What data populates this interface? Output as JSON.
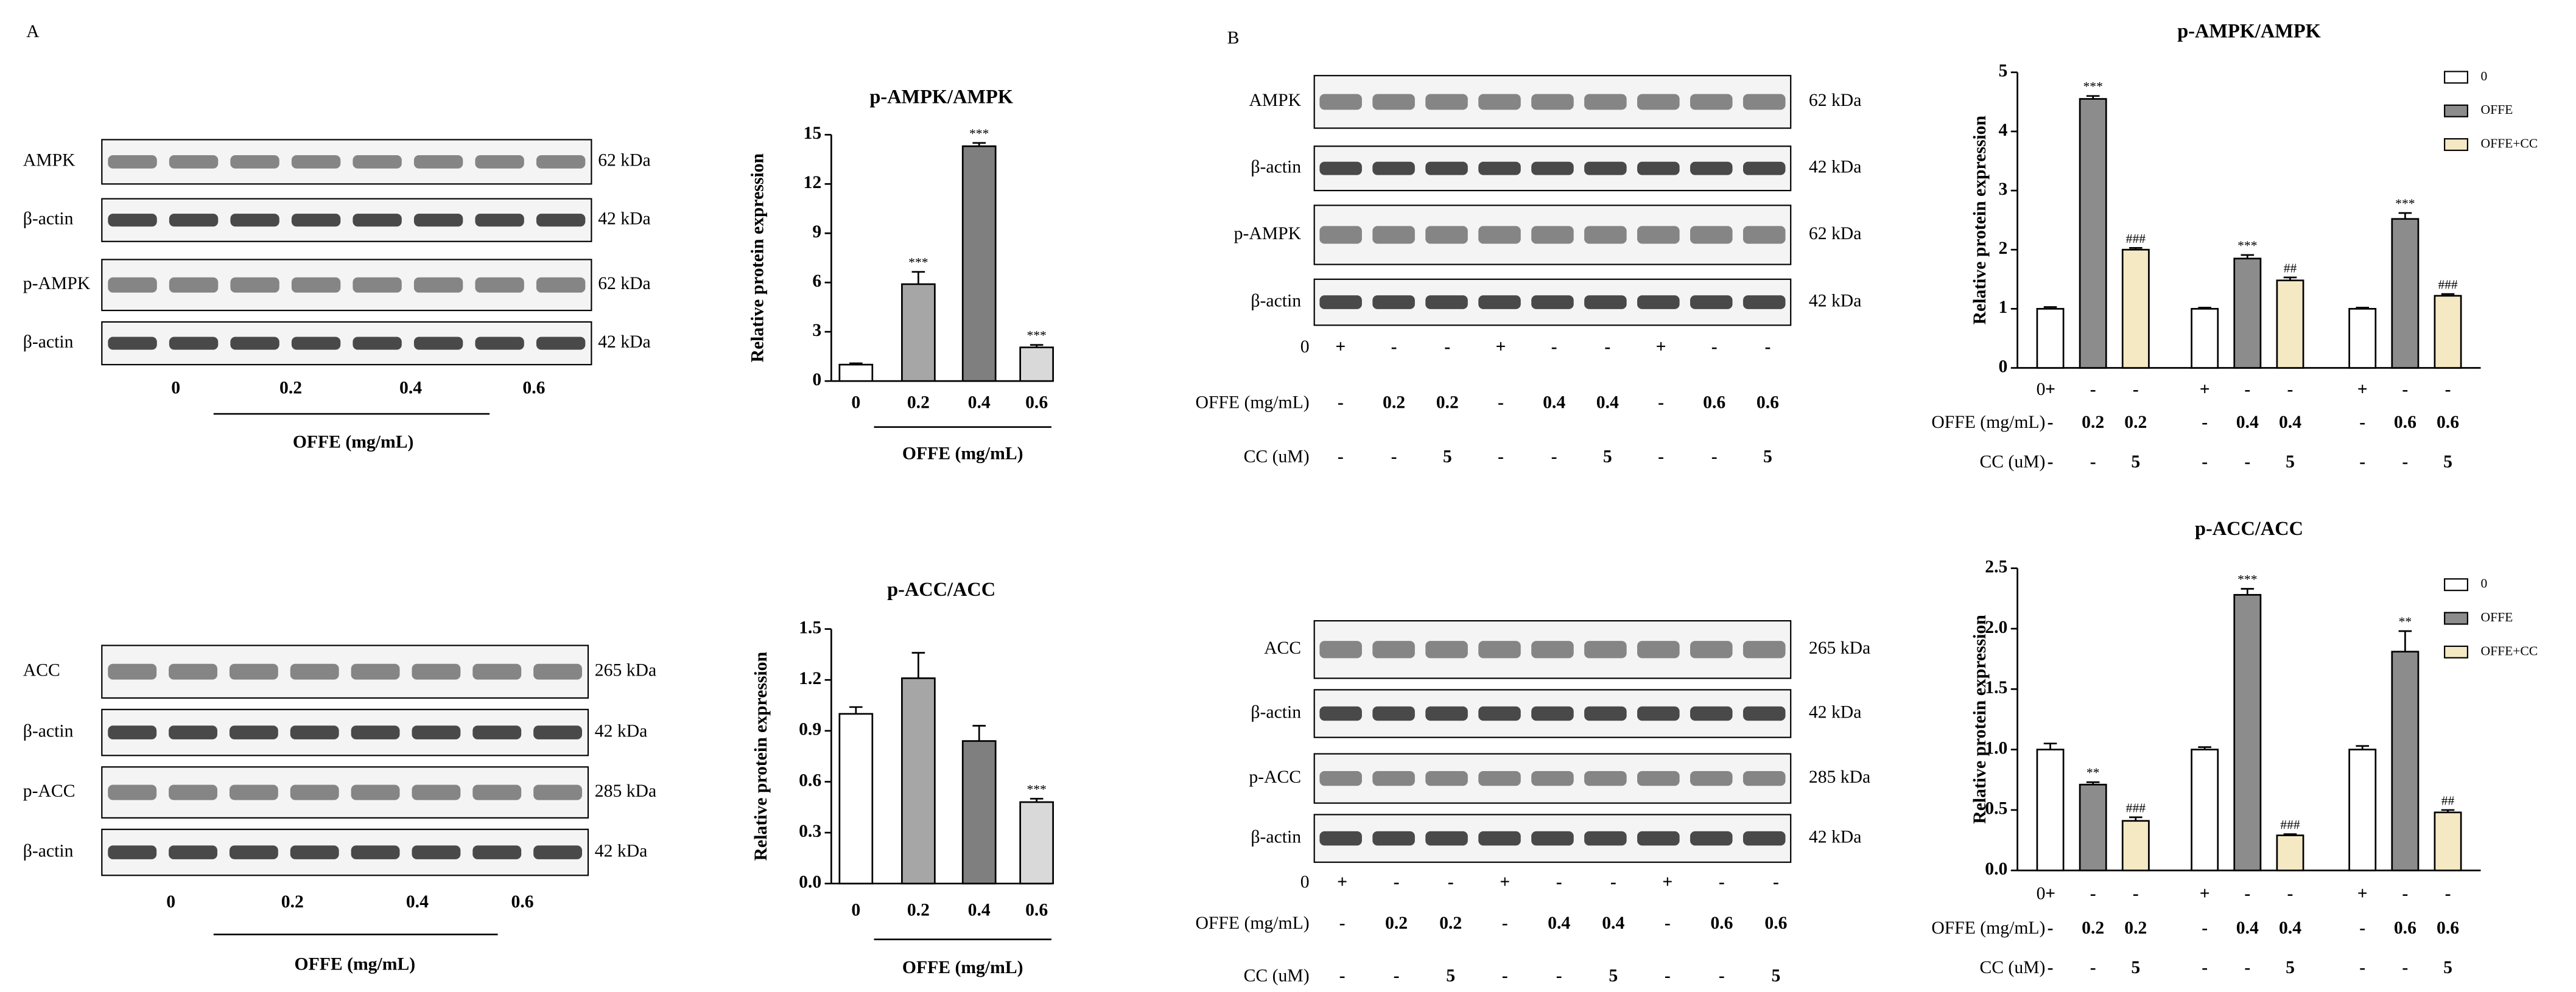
{
  "chart_data": [
    {
      "type": "bar",
      "title": "p-AMPK/AMPK",
      "y_label": "Relative protein expression",
      "x_label": "OFFE (mg/mL)",
      "categories": [
        "0",
        "0.2",
        "0.4",
        "0.6"
      ],
      "values": [
        1,
        5.9,
        14.3,
        2.05
      ],
      "errors": [
        0.08,
        0.75,
        0.2,
        0.15
      ],
      "annotations": [
        null,
        "***",
        "***",
        "***"
      ],
      "colors": [
        "#ffffff",
        "#a6a6a6",
        "#7f7f7f",
        "#d9d9d9"
      ],
      "ylim": [
        0,
        15
      ],
      "yticks": [
        0,
        3,
        6,
        9,
        12,
        15
      ]
    },
    {
      "type": "bar",
      "title": "p-ACC/ACC",
      "y_label": "Relative protein expression",
      "x_label": "OFFE (mg/mL)",
      "categories": [
        "0",
        "0.2",
        "0.4",
        "0.6"
      ],
      "values": [
        1.0,
        1.21,
        0.84,
        0.48
      ],
      "errors": [
        0.04,
        0.15,
        0.09,
        0.02
      ],
      "annotations": [
        null,
        null,
        null,
        "***"
      ],
      "colors": [
        "#ffffff",
        "#a6a6a6",
        "#7f7f7f",
        "#d9d9d9"
      ],
      "ylim": [
        0,
        1.5
      ],
      "yticks": [
        {
          "value": 0,
          "label": "0.0"
        },
        0.3,
        0.6,
        0.9,
        1.2,
        1.5
      ]
    },
    {
      "type": "grouped_bar",
      "title": "p-AMPK/AMPK",
      "y_label": "Relative protein expression",
      "series": [
        {
          "name": "0",
          "color": "#ffffff",
          "values": [
            1,
            1,
            1
          ],
          "errors": [
            0.03,
            0.02,
            0.02
          ],
          "annotations": [
            null,
            null,
            null
          ]
        },
        {
          "name": "OFFE",
          "color": "#8c8c8c",
          "values": [
            4.55,
            1.85,
            2.52
          ],
          "errors": [
            0.05,
            0.06,
            0.1
          ],
          "annotations": [
            "***",
            "***",
            "***"
          ]
        },
        {
          "name": "OFFE+CC",
          "color": "#f5e9c4",
          "values": [
            2.0,
            1.48,
            1.22
          ],
          "errors": [
            0.03,
            0.05,
            0.03
          ],
          "annotations": [
            "###",
            "##",
            "###"
          ]
        }
      ],
      "ylim": [
        0,
        5
      ],
      "yticks": [
        0,
        1,
        2,
        3,
        4,
        5
      ],
      "legend": "upper right",
      "conditions": [
        {
          "label": "0",
          "values": [
            "+",
            "-",
            "-",
            "+",
            "-",
            "-",
            "+",
            "-",
            "-"
          ]
        },
        {
          "label": "OFFE (mg/mL)",
          "values": [
            "-",
            "0.2",
            "0.2",
            "-",
            "0.4",
            "0.4",
            "-",
            "0.6",
            "0.6"
          ]
        },
        {
          "label": "CC (uM)",
          "values": [
            "-",
            "-",
            "5",
            "-",
            "-",
            "5",
            "-",
            "-",
            "5"
          ]
        }
      ]
    },
    {
      "type": "grouped_bar",
      "title": "p-ACC/ACC",
      "y_label": "Relative protein expression",
      "series": [
        {
          "name": "0",
          "color": "#ffffff",
          "values": [
            1,
            1,
            1
          ],
          "errors": [
            0.05,
            0.02,
            0.03
          ],
          "annotations": [
            null,
            null,
            null
          ]
        },
        {
          "name": "OFFE",
          "color": "#8c8c8c",
          "values": [
            0.71,
            2.28,
            1.81
          ],
          "errors": [
            0.02,
            0.05,
            0.17
          ],
          "annotations": [
            "**",
            "***",
            "**"
          ]
        },
        {
          "name": "OFFE+CC",
          "color": "#f5e9c4",
          "values": [
            0.41,
            0.29,
            0.48
          ],
          "errors": [
            0.03,
            0.01,
            0.02
          ],
          "annotations": [
            "###",
            "###",
            "##"
          ]
        }
      ],
      "ylim": [
        0,
        2.5
      ],
      "yticks": [
        {
          "value": 0,
          "label": "0.0"
        },
        0.5,
        {
          "value": 1,
          "label": "1.0"
        },
        1.5,
        {
          "value": 2,
          "label": "2.0"
        },
        2.5
      ],
      "legend": "upper right",
      "conditions": [
        {
          "label": "0",
          "values": [
            "+",
            "-",
            "-",
            "+",
            "-",
            "-",
            "+",
            "-",
            "-"
          ]
        },
        {
          "label": "OFFE (mg/mL)",
          "values": [
            "-",
            "0.2",
            "0.2",
            "-",
            "0.4",
            "0.4",
            "-",
            "0.6",
            "0.6"
          ]
        },
        {
          "label": "CC (uM)",
          "values": [
            "-",
            "-",
            "5",
            "-",
            "-",
            "5",
            "-",
            "-",
            "5"
          ]
        }
      ]
    }
  ],
  "blots": [
    {
      "panel": "A",
      "rows": [
        {
          "name": "AMPK",
          "kda": "62 kDa"
        },
        {
          "name": "β-actin",
          "kda": "42 kDa"
        },
        {
          "name": "p-AMPK",
          "kda": "62 kDa"
        },
        {
          "name": "β-actin",
          "kda": "42 kDa"
        }
      ],
      "lanes": [
        "0",
        "0.2",
        "0.4",
        "0.6"
      ],
      "x_label": "OFFE (mg/mL)"
    },
    {
      "rows": [
        {
          "name": "ACC",
          "kda": "265 kDa"
        },
        {
          "name": "β-actin",
          "kda": "42 kDa"
        },
        {
          "name": "p-ACC",
          "kda": "285 kDa"
        },
        {
          "name": "β-actin",
          "kda": "42 kDa"
        }
      ],
      "lanes": [
        "0",
        "0.2",
        "0.4",
        "0.6"
      ],
      "x_label": "OFFE (mg/mL)"
    },
    {
      "panel": "B",
      "rows": [
        {
          "name": "AMPK",
          "kda": "62 kDa"
        },
        {
          "name": "β-actin",
          "kda": "42 kDa"
        },
        {
          "name": "p-AMPK",
          "kda": "62 kDa"
        },
        {
          "name": "β-actin",
          "kda": "42 kDa"
        }
      ],
      "conditions": [
        {
          "label": "0",
          "values": [
            "+",
            "-",
            "-",
            "+",
            "-",
            "-",
            "+",
            "-",
            "-"
          ]
        },
        {
          "label": "OFFE (mg/mL)",
          "values": [
            "-",
            "0.2",
            "0.2",
            "-",
            "0.4",
            "0.4",
            "-",
            "0.6",
            "0.6"
          ]
        },
        {
          "label": "CC (uM)",
          "values": [
            "-",
            "-",
            "5",
            "-",
            "-",
            "5",
            "-",
            "-",
            "5"
          ]
        }
      ]
    },
    {
      "rows": [
        {
          "name": "ACC",
          "kda": "265 kDa"
        },
        {
          "name": "β-actin",
          "kda": "42 kDa"
        },
        {
          "name": "p-ACC",
          "kda": "285 kDa"
        },
        {
          "name": "β-actin",
          "kda": "42 kDa"
        }
      ],
      "conditions": [
        {
          "label": "0",
          "values": [
            "+",
            "-",
            "-",
            "+",
            "-",
            "-",
            "+",
            "-",
            "-"
          ]
        },
        {
          "label": "OFFE (mg/mL)",
          "values": [
            "-",
            "0.2",
            "0.2",
            "-",
            "0.4",
            "0.4",
            "-",
            "0.6",
            "0.6"
          ]
        },
        {
          "label": "CC (uM)",
          "values": [
            "-",
            "-",
            "5",
            "-",
            "-",
            "5",
            "-",
            "-",
            "5"
          ]
        }
      ]
    }
  ]
}
